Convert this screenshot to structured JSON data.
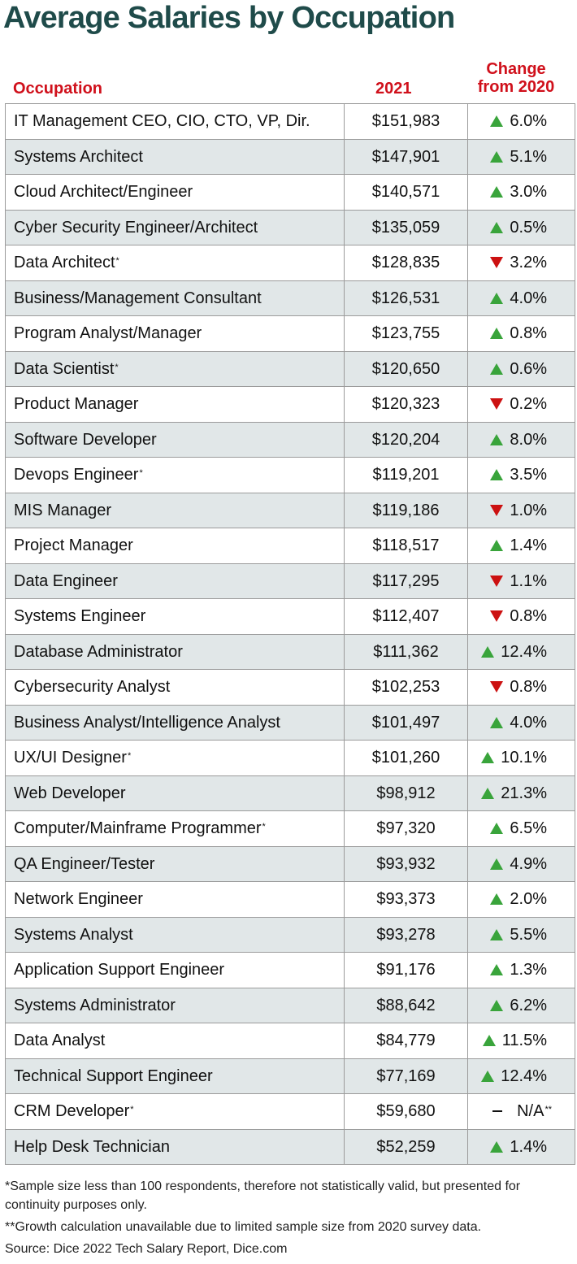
{
  "title": "Average Salaries by Occupation",
  "headers": {
    "occupation": "Occupation",
    "year": "2021",
    "change_line1": "Change",
    "change_line2": "from 2020"
  },
  "colors": {
    "title": "#1f4b4a",
    "header": "#d0101b",
    "up": "#39a43b",
    "down": "#cc1111",
    "stripe": "#e1e7e8"
  },
  "chart_data": {
    "type": "table",
    "title": "Average Salaries by Occupation",
    "columns": [
      "Occupation",
      "2021",
      "Change from 2020"
    ],
    "rows": [
      {
        "occupation": "IT Management CEO, CIO, CTO, VP, Dir.",
        "note": "",
        "salary": "$151,983",
        "direction": "up",
        "change": "6.0%",
        "change_note": ""
      },
      {
        "occupation": "Systems Architect",
        "note": "",
        "salary": "$147,901",
        "direction": "up",
        "change": "5.1%",
        "change_note": ""
      },
      {
        "occupation": "Cloud Architect/Engineer",
        "note": "",
        "salary": "$140,571",
        "direction": "up",
        "change": "3.0%",
        "change_note": ""
      },
      {
        "occupation": "Cyber Security Engineer/Architect",
        "note": "",
        "salary": "$135,059",
        "direction": "up",
        "change": "0.5%",
        "change_note": ""
      },
      {
        "occupation": "Data Architect",
        "note": "*",
        "salary": "$128,835",
        "direction": "down",
        "change": "3.2%",
        "change_note": ""
      },
      {
        "occupation": "Business/Management Consultant",
        "note": "",
        "salary": "$126,531",
        "direction": "up",
        "change": "4.0%",
        "change_note": ""
      },
      {
        "occupation": "Program Analyst/Manager",
        "note": "",
        "salary": "$123,755",
        "direction": "up",
        "change": "0.8%",
        "change_note": ""
      },
      {
        "occupation": "Data Scientist",
        "note": "*",
        "salary": "$120,650",
        "direction": "up",
        "change": "0.6%",
        "change_note": ""
      },
      {
        "occupation": "Product Manager",
        "note": "",
        "salary": "$120,323",
        "direction": "down",
        "change": "0.2%",
        "change_note": ""
      },
      {
        "occupation": "Software Developer",
        "note": "",
        "salary": "$120,204",
        "direction": "up",
        "change": "8.0%",
        "change_note": ""
      },
      {
        "occupation": "Devops Engineer",
        "note": "*",
        "salary": "$119,201",
        "direction": "up",
        "change": "3.5%",
        "change_note": ""
      },
      {
        "occupation": "MIS Manager",
        "note": "",
        "salary": "$119,186",
        "direction": "down",
        "change": "1.0%",
        "change_note": ""
      },
      {
        "occupation": "Project Manager",
        "note": "",
        "salary": "$118,517",
        "direction": "up",
        "change": "1.4%",
        "change_note": ""
      },
      {
        "occupation": "Data Engineer",
        "note": "",
        "salary": "$117,295",
        "direction": "down",
        "change": "1.1%",
        "change_note": ""
      },
      {
        "occupation": "Systems Engineer",
        "note": "",
        "salary": "$112,407",
        "direction": "down",
        "change": "0.8%",
        "change_note": ""
      },
      {
        "occupation": "Database Administrator",
        "note": "",
        "salary": "$111,362",
        "direction": "up",
        "change": "12.4%",
        "change_note": ""
      },
      {
        "occupation": "Cybersecurity Analyst",
        "note": "",
        "salary": "$102,253",
        "direction": "down",
        "change": "0.8%",
        "change_note": ""
      },
      {
        "occupation": "Business Analyst/Intelligence Analyst",
        "note": "",
        "salary": "$101,497",
        "direction": "up",
        "change": "4.0%",
        "change_note": ""
      },
      {
        "occupation": "UX/UI Designer",
        "note": "*",
        "salary": "$101,260",
        "direction": "up",
        "change": "10.1%",
        "change_note": ""
      },
      {
        "occupation": "Web Developer",
        "note": "",
        "salary": "$98,912",
        "direction": "up",
        "change": "21.3%",
        "change_note": ""
      },
      {
        "occupation": "Computer/Mainframe Programmer",
        "note": "*",
        "salary": "$97,320",
        "direction": "up",
        "change": "6.5%",
        "change_note": ""
      },
      {
        "occupation": "QA Engineer/Tester",
        "note": "",
        "salary": "$93,932",
        "direction": "up",
        "change": "4.9%",
        "change_note": ""
      },
      {
        "occupation": "Network Engineer",
        "note": "",
        "salary": "$93,373",
        "direction": "up",
        "change": "2.0%",
        "change_note": ""
      },
      {
        "occupation": "Systems Analyst",
        "note": "",
        "salary": "$93,278",
        "direction": "up",
        "change": "5.5%",
        "change_note": ""
      },
      {
        "occupation": "Application Support Engineer",
        "note": "",
        "salary": "$91,176",
        "direction": "up",
        "change": "1.3%",
        "change_note": ""
      },
      {
        "occupation": "Systems Administrator",
        "note": "",
        "salary": "$88,642",
        "direction": "up",
        "change": "6.2%",
        "change_note": ""
      },
      {
        "occupation": "Data Analyst",
        "note": "",
        "salary": "$84,779",
        "direction": "up",
        "change": "11.5%",
        "change_note": ""
      },
      {
        "occupation": "Technical Support Engineer",
        "note": "",
        "salary": "$77,169",
        "direction": "up",
        "change": "12.4%",
        "change_note": ""
      },
      {
        "occupation": "CRM Developer",
        "note": "*",
        "salary": "$59,680",
        "direction": "none",
        "change": "N/A",
        "change_note": "**"
      },
      {
        "occupation": "Help Desk Technician",
        "note": "",
        "salary": "$52,259",
        "direction": "up",
        "change": "1.4%",
        "change_note": ""
      }
    ]
  },
  "footnotes": {
    "note1": "*Sample size less than 100 respondents, therefore not statistically valid, but presented for continuity purposes only.",
    "note2": "**Growth calculation unavailable due to limited sample size from 2020 survey data.",
    "source": "Source: Dice 2022 Tech Salary Report, Dice.com"
  }
}
